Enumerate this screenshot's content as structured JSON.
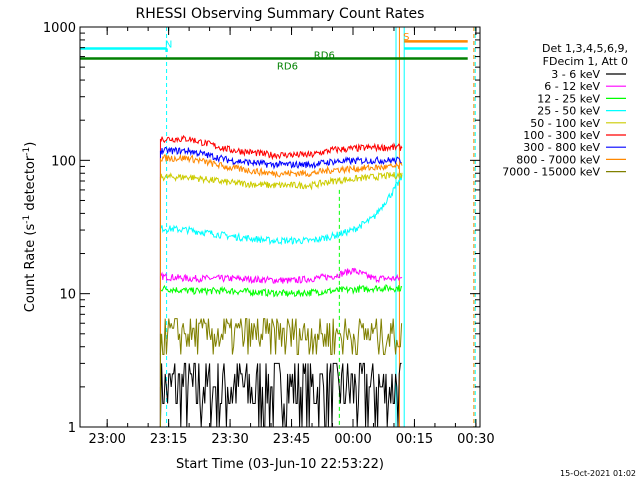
{
  "chart_data": {
    "type": "line",
    "title": "RHESSI Observing Summary Count Rates",
    "xlabel": "Start Time (03-Jun-10 22:53:22)",
    "ylabel_main": "Count Rate (s",
    "ylabel_sup1": "-1",
    "ylabel_mid": " detector",
    "ylabel_sup2": "-1",
    "ylabel_end": ")",
    "yscale": "log",
    "ylim": [
      1,
      1000
    ],
    "xlim": [
      "22:53:22",
      "00:31:00"
    ],
    "yticks": [
      {
        "label": "1",
        "value": 1
      },
      {
        "label": "10",
        "value": 10
      },
      {
        "label": "100",
        "value": 100
      },
      {
        "label": "1000",
        "value": 1000
      }
    ],
    "xticks": [
      {
        "label": "23:00",
        "value": "23:00"
      },
      {
        "label": "23:15",
        "value": "23:15"
      },
      {
        "label": "23:30",
        "value": "23:30"
      },
      {
        "label": "23:45",
        "value": "23:45"
      },
      {
        "label": "00:00",
        "value": "00:00"
      },
      {
        "label": "00:15",
        "value": "00:15"
      },
      {
        "label": "00:30",
        "value": "00:30"
      }
    ],
    "legend_title1": "Det 1,3,4,5,6,9,",
    "legend_title2": "FDecim 1, Att 0",
    "legend_position": "right",
    "series": [
      {
        "name": "3 - 6 keV",
        "color": "#000000",
        "x": [
          "23:13",
          "23:20",
          "23:30",
          "23:45",
          "23:55",
          "00:05",
          "00:12"
        ],
        "y": [
          2.0,
          2.0,
          2.0,
          2.0,
          2.0,
          2.0,
          2.0
        ]
      },
      {
        "name": "6 - 12 keV",
        "color": "#ff00ff",
        "x": [
          "23:13",
          "23:20",
          "23:30",
          "23:45",
          "23:55",
          "00:00",
          "00:05",
          "00:12"
        ],
        "y": [
          13.5,
          13.0,
          13.0,
          12.5,
          13.5,
          15.0,
          13.0,
          13.0
        ]
      },
      {
        "name": "12 - 25 keV",
        "color": "#00ff00",
        "x": [
          "23:13",
          "23:20",
          "23:30",
          "23:45",
          "23:55",
          "00:05",
          "00:12"
        ],
        "y": [
          11.0,
          10.5,
          10.5,
          10.0,
          10.5,
          11.0,
          11.0
        ]
      },
      {
        "name": "25 - 50 keV",
        "color": "#00ffff",
        "x": [
          "23:13",
          "23:20",
          "23:30",
          "23:40",
          "23:50",
          "23:55",
          "00:00",
          "00:05",
          "00:10",
          "00:12"
        ],
        "y": [
          31,
          30,
          27,
          25,
          25,
          27,
          30,
          37,
          60,
          75
        ]
      },
      {
        "name": "50 - 100 keV",
        "color": "#cccc00",
        "x": [
          "23:13",
          "23:20",
          "23:30",
          "23:40",
          "23:50",
          "23:55",
          "00:05",
          "00:12"
        ],
        "y": [
          75,
          75,
          68,
          65,
          65,
          70,
          75,
          78
        ]
      },
      {
        "name": "100 - 300 keV",
        "color": "#ff0000",
        "x": [
          "23:13",
          "23:20",
          "23:30",
          "23:40",
          "23:50",
          "23:55",
          "00:05",
          "00:12"
        ],
        "y": [
          145,
          145,
          120,
          110,
          110,
          120,
          125,
          125
        ]
      },
      {
        "name": "300 - 800 keV",
        "color": "#0000ff",
        "x": [
          "23:13",
          "23:20",
          "23:30",
          "23:40",
          "23:50",
          "23:55",
          "00:05",
          "00:12"
        ],
        "y": [
          118,
          118,
          100,
          93,
          93,
          98,
          100,
          100
        ]
      },
      {
        "name": "800 - 7000 keV",
        "color": "#ff8800",
        "x": [
          "23:13",
          "23:20",
          "23:30",
          "23:40",
          "23:50",
          "23:55",
          "00:05",
          "00:12"
        ],
        "y": [
          104,
          104,
          88,
          80,
          80,
          85,
          88,
          90
        ]
      },
      {
        "name": "7000 - 15000 keV",
        "color": "#808000",
        "x": [
          "23:13",
          "23:20",
          "23:30",
          "23:45",
          "23:55",
          "00:05",
          "00:12"
        ],
        "y": [
          5.0,
          5.0,
          5.0,
          4.5,
          5.0,
          5.0,
          5.0
        ]
      }
    ],
    "annotations": [
      {
        "text": "N",
        "x": "23:15",
        "y": 700,
        "color": "#00ffff"
      },
      {
        "text": "S",
        "x": "00:13",
        "y": 800,
        "color": "#ff8800"
      },
      {
        "text": "RD6",
        "x": "23:53",
        "y": 580,
        "color": "#008000"
      },
      {
        "text": "RD6",
        "x": "23:44",
        "y": 480,
        "color": "#008000"
      }
    ],
    "date_stamp": "15-Oct-2021 01:02"
  }
}
